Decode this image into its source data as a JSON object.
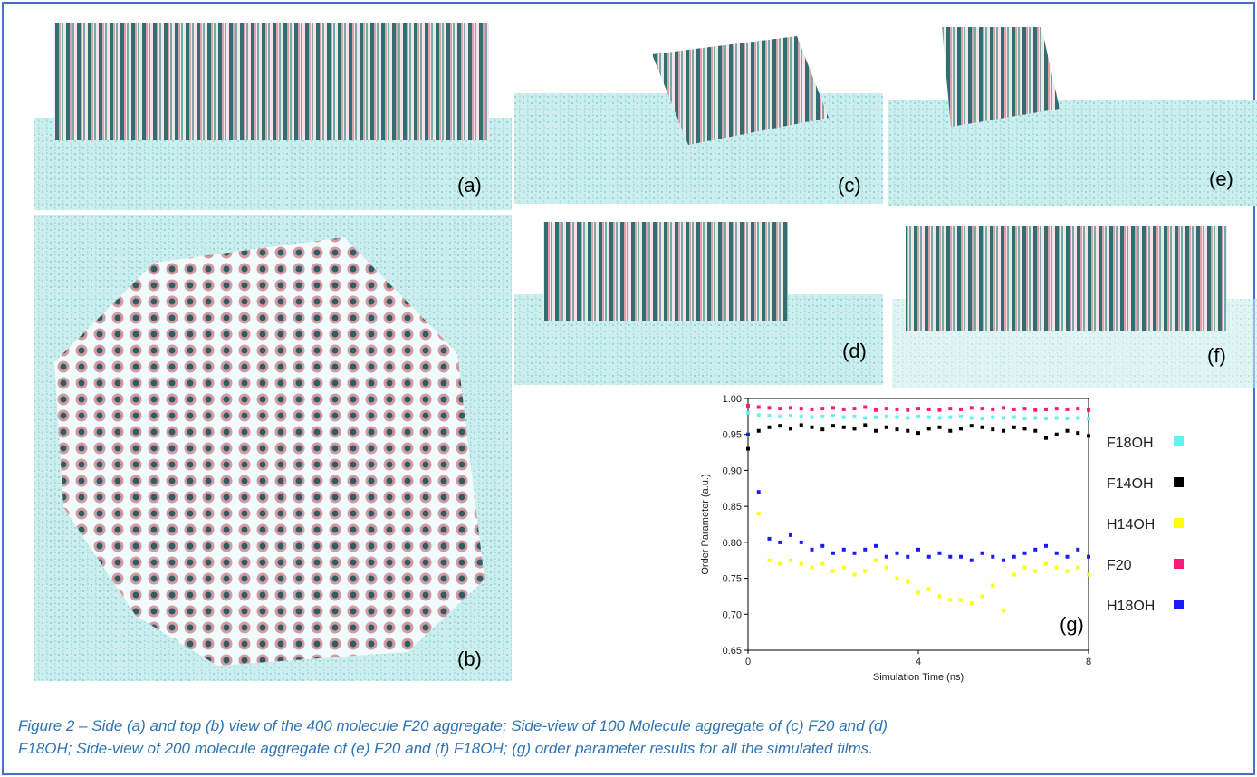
{
  "panels": [
    "(a)",
    "(b)",
    "(c)",
    "(d)",
    "(e)",
    "(f)",
    "(g)"
  ],
  "caption": [
    "Figure 2 – Side (a) and top (b) view of the 400 molecule F20 aggregate; Side-view of 100 Molecule aggregate of (c) F20 and (d)",
    "F18OH; Side-view of 200 molecule aggregate of (e) F20 and (f) F18OH; (g) order parameter results for all the simulated films."
  ],
  "chart_data": {
    "type": "scatter",
    "xlabel": "Simulation Time (ns)",
    "ylabel": "Order Parameter (a.u.)",
    "xlim": [
      0,
      8
    ],
    "xticks": [
      0,
      4,
      8
    ],
    "ylim": [
      0.65,
      1.0
    ],
    "yticks": [
      0.65,
      {
        "value": 0.7,
        "label": "0.70"
      },
      0.75,
      {
        "value": 0.8,
        "label": "0.80"
      },
      0.85,
      {
        "value": 0.9,
        "label": "0.90"
      },
      0.95,
      {
        "value": 1.0,
        "label": "1.00"
      }
    ],
    "x": [
      0,
      0.25,
      0.5,
      0.75,
      1,
      1.25,
      1.5,
      1.75,
      2,
      2.25,
      2.5,
      2.75,
      3,
      3.25,
      3.5,
      3.75,
      4,
      4.25,
      4.5,
      4.75,
      5,
      5.25,
      5.5,
      5.75,
      6,
      6.25,
      6.5,
      6.75,
      7,
      7.25,
      7.5,
      7.75,
      8
    ],
    "series": [
      {
        "name": "F18OH",
        "color": "#66f0f0",
        "values": [
          0.98,
          0.977,
          0.976,
          0.975,
          0.976,
          0.975,
          0.974,
          0.975,
          0.976,
          0.974,
          0.975,
          0.973,
          0.974,
          0.975,
          0.974,
          0.973,
          0.975,
          0.974,
          0.973,
          0.974,
          0.975,
          0.973,
          0.972,
          0.974,
          0.973,
          0.974,
          0.972,
          0.973,
          0.972,
          0.973,
          0.972,
          0.973,
          0.972
        ]
      },
      {
        "name": "F14OH",
        "color": "#000000",
        "values": [
          0.93,
          0.955,
          0.96,
          0.962,
          0.958,
          0.963,
          0.96,
          0.957,
          0.962,
          0.96,
          0.958,
          0.963,
          0.955,
          0.96,
          0.957,
          0.955,
          0.952,
          0.958,
          0.96,
          0.955,
          0.958,
          0.962,
          0.96,
          0.957,
          0.955,
          0.96,
          0.958,
          0.955,
          0.945,
          0.95,
          0.955,
          0.952,
          0.948
        ]
      },
      {
        "name": "H14OH",
        "color": "#ffff00",
        "values": [
          0.95,
          0.84,
          0.775,
          0.77,
          0.775,
          0.77,
          0.765,
          0.77,
          0.76,
          0.765,
          0.755,
          0.76,
          0.775,
          0.765,
          0.75,
          0.745,
          0.73,
          0.735,
          0.725,
          0.72,
          0.72,
          0.715,
          0.725,
          0.74,
          0.705,
          0.755,
          0.765,
          0.76,
          0.77,
          0.765,
          0.76,
          0.765,
          0.755
        ]
      },
      {
        "name": "F20",
        "color": "#ff1a75",
        "values": [
          0.99,
          0.988,
          0.987,
          0.986,
          0.987,
          0.986,
          0.985,
          0.986,
          0.987,
          0.985,
          0.986,
          0.988,
          0.984,
          0.986,
          0.985,
          0.984,
          0.986,
          0.985,
          0.984,
          0.986,
          0.985,
          0.987,
          0.986,
          0.985,
          0.987,
          0.985,
          0.986,
          0.984,
          0.985,
          0.986,
          0.985,
          0.986,
          0.984
        ]
      },
      {
        "name": "H18OH",
        "color": "#1a1aff",
        "values": [
          0.95,
          0.87,
          0.805,
          0.8,
          0.81,
          0.8,
          0.79,
          0.795,
          0.785,
          0.79,
          0.785,
          0.79,
          0.795,
          0.78,
          0.785,
          0.78,
          0.79,
          0.78,
          0.785,
          0.78,
          0.78,
          0.775,
          0.785,
          0.78,
          0.775,
          0.78,
          0.785,
          0.79,
          0.795,
          0.785,
          0.78,
          0.79,
          0.78
        ]
      }
    ]
  }
}
